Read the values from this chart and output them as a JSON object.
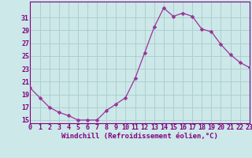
{
  "x": [
    0,
    1,
    2,
    3,
    4,
    5,
    6,
    7,
    8,
    9,
    10,
    11,
    12,
    13,
    14,
    15,
    16,
    17,
    18,
    19,
    20,
    21,
    22,
    23
  ],
  "y": [
    20,
    18.5,
    17,
    16.2,
    15.7,
    15.0,
    15.0,
    15.0,
    16.5,
    17.5,
    18.5,
    21.5,
    25.5,
    29.5,
    32.5,
    31.2,
    31.7,
    31.2,
    29.2,
    28.8,
    26.8,
    25.2,
    24.0,
    23.2
  ],
  "line_color": "#993399",
  "marker": "D",
  "marker_size": 2.5,
  "bg_color": "#cce8e8",
  "grid_color": "#aacccc",
  "xlabel": "Windchill (Refroidissement éolien,°C)",
  "xlim": [
    0,
    23
  ],
  "ylim": [
    14.5,
    33.5
  ],
  "yticks": [
    15,
    17,
    19,
    21,
    23,
    25,
    27,
    29,
    31
  ],
  "xticks": [
    0,
    1,
    2,
    3,
    4,
    5,
    6,
    7,
    8,
    9,
    10,
    11,
    12,
    13,
    14,
    15,
    16,
    17,
    18,
    19,
    20,
    21,
    22,
    23
  ],
  "label_color": "#800080",
  "tick_color": "#800080",
  "xlabel_fontsize": 6.5,
  "tick_fontsize": 6.0
}
